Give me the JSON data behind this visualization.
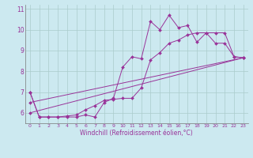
{
  "title": "",
  "xlabel": "Windchill (Refroidissement éolien,°C)",
  "ylabel": "",
  "background_color": "#cce9f0",
  "grid_color": "#aacccc",
  "line_color": "#993399",
  "xlim": [
    -0.5,
    23.5
  ],
  "ylim": [
    5.5,
    11.2
  ],
  "xticks": [
    0,
    1,
    2,
    3,
    4,
    5,
    6,
    7,
    8,
    9,
    10,
    11,
    12,
    13,
    14,
    15,
    16,
    17,
    18,
    19,
    20,
    21,
    22,
    23
  ],
  "yticks": [
    6,
    7,
    8,
    9,
    10,
    11
  ],
  "curves": [
    {
      "x": [
        0,
        1,
        2,
        3,
        4,
        5,
        6,
        7,
        8,
        9,
        10,
        11,
        12,
        13,
        14,
        15,
        16,
        17,
        18,
        19,
        20,
        21,
        22,
        23
      ],
      "y": [
        7.0,
        5.8,
        5.8,
        5.8,
        5.8,
        5.8,
        5.9,
        5.8,
        6.5,
        6.7,
        8.2,
        8.7,
        8.6,
        10.4,
        10.0,
        10.7,
        10.1,
        10.2,
        9.4,
        9.85,
        9.35,
        9.35,
        8.7,
        8.65
      ]
    },
    {
      "x": [
        0,
        1,
        2,
        3,
        4,
        5,
        6,
        7,
        8,
        9,
        10,
        11,
        12,
        13,
        14,
        15,
        16,
        17,
        18,
        19,
        20,
        21,
        22,
        23
      ],
      "y": [
        7.0,
        5.8,
        5.8,
        5.8,
        5.85,
        5.9,
        6.15,
        6.35,
        6.6,
        6.65,
        6.7,
        6.7,
        7.2,
        8.55,
        8.9,
        9.35,
        9.5,
        9.75,
        9.85,
        9.85,
        9.85,
        9.85,
        8.7,
        8.65
      ]
    },
    {
      "x": [
        0,
        23
      ],
      "y": [
        6.0,
        8.65
      ]
    },
    {
      "x": [
        0,
        23
      ],
      "y": [
        6.5,
        8.65
      ]
    }
  ]
}
